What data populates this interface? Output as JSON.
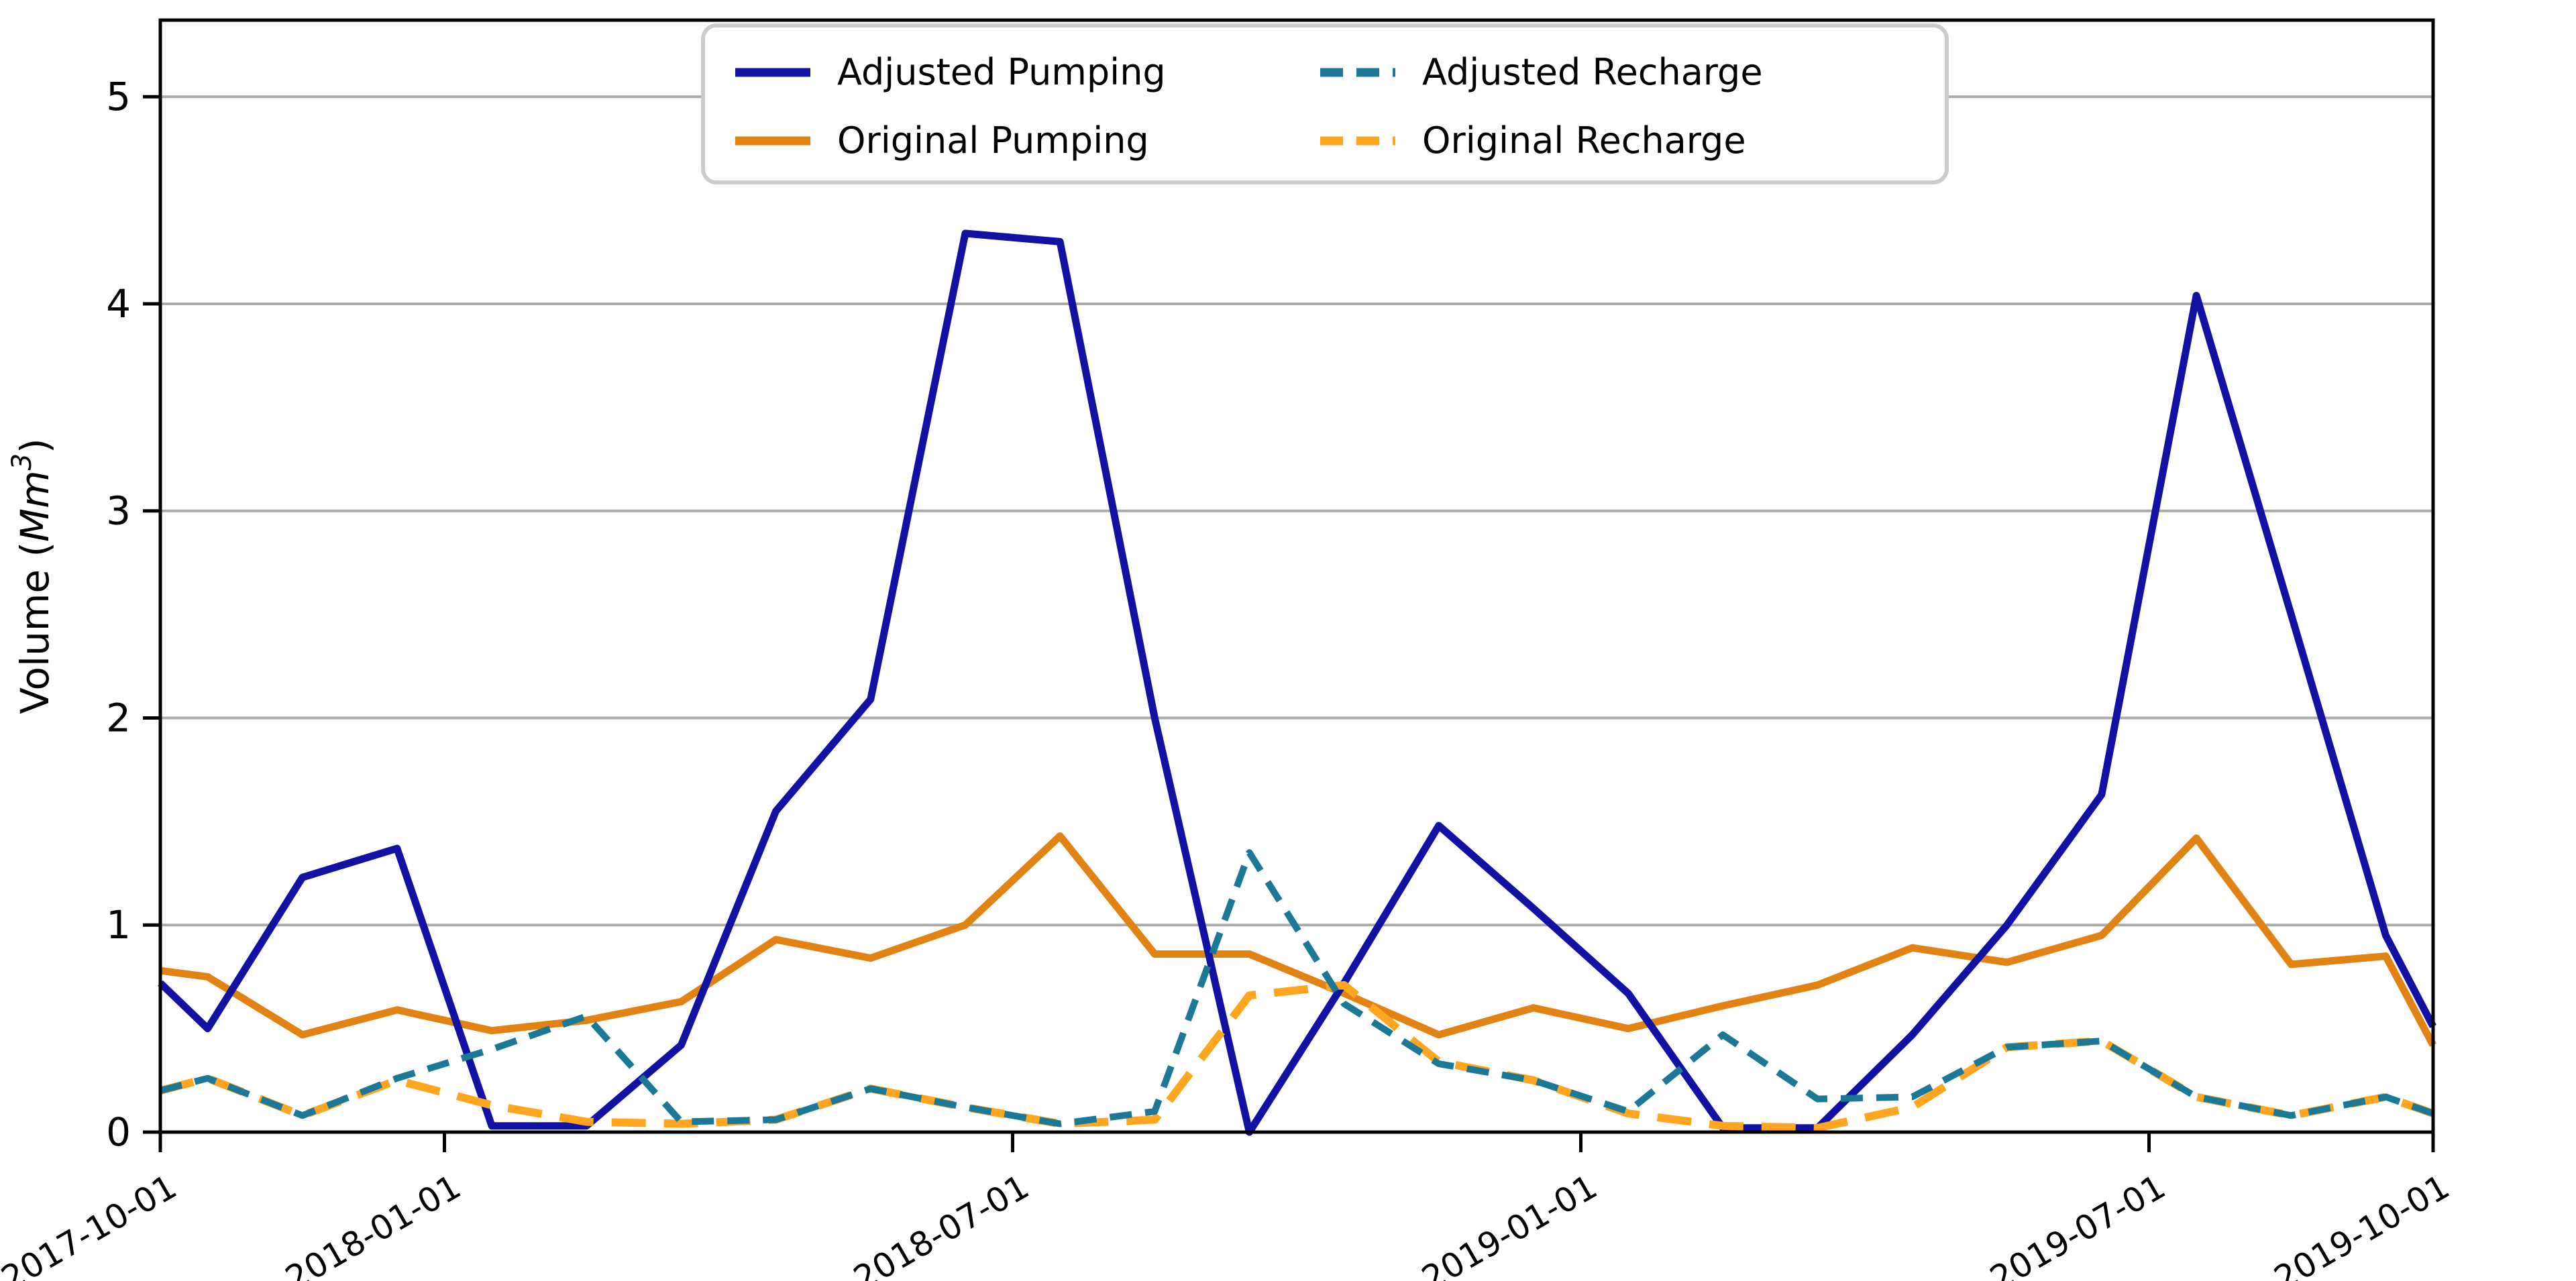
{
  "page": {
    "background": "#FFFFFF"
  },
  "chart_data": {
    "type": "line",
    "title": "",
    "xlabel": "",
    "ylabel": "Volume (Mm³)",
    "ylabel_parts": {
      "prefix": "Volume (",
      "math": "Mm",
      "sup": "3",
      "suffix": ")"
    },
    "ylim": [
      0,
      5.37
    ],
    "yticks": [
      0,
      1,
      2,
      3,
      4,
      5
    ],
    "ytick_labels": [
      "0",
      "1",
      "2",
      "3",
      "4",
      "5"
    ],
    "grid": "horizontal",
    "grid_color": "#ABABAB",
    "spine_color": "#000000",
    "legend": {
      "position": "upper center",
      "border_color": "#CCCCCC",
      "fill": "#FFFFFF",
      "columns": 2,
      "entries": [
        {
          "label": "Adjusted Pumping",
          "color": "#1111A3",
          "style": "solid"
        },
        {
          "label": "Original Pumping",
          "color": "#E28212",
          "style": "solid"
        },
        {
          "label": "Adjusted Recharge",
          "color": "#1B7997",
          "style": "dashed"
        },
        {
          "label": "Original Recharge",
          "color": "#FFA51F",
          "style": "dashed"
        }
      ]
    },
    "x_axis": {
      "unit": "months since 2017-10-01",
      "range_months": [
        0,
        24
      ],
      "xtick_months": [
        0,
        3,
        9,
        15,
        21,
        24
      ],
      "xtick_labels": [
        "2017-10-01",
        "2018-01-01",
        "2018-07-01",
        "2019-01-01",
        "2019-07-01",
        "2019-10-01"
      ],
      "xtick_rotation": -30
    },
    "x_months": [
      0,
      0.5,
      1.5,
      2.5,
      3.5,
      4.5,
      5.5,
      6.5,
      7.5,
      8.5,
      9.5,
      10.5,
      11.5,
      12.5,
      13.5,
      14.5,
      15.5,
      16.5,
      17.5,
      18.5,
      19.5,
      20.5,
      21.5,
      22.5,
      23.5,
      24
    ],
    "x_dates": [
      "2017-10-01",
      "2017-10-16",
      "2017-11-16",
      "2017-12-16",
      "2018-01-16",
      "2018-02-16",
      "2018-03-16",
      "2018-04-16",
      "2018-05-16",
      "2018-06-16",
      "2018-07-16",
      "2018-08-16",
      "2018-09-16",
      "2018-10-16",
      "2018-11-16",
      "2018-12-16",
      "2019-01-16",
      "2019-02-16",
      "2019-03-16",
      "2019-04-16",
      "2019-05-16",
      "2019-06-16",
      "2019-07-16",
      "2019-08-16",
      "2019-09-16",
      "2019-10-01"
    ],
    "series": [
      {
        "id": "original_pumping",
        "name": "Original Pumping",
        "color": "#E28212",
        "style": "solid",
        "width": 11,
        "values": [
          0.78,
          0.75,
          0.47,
          0.59,
          0.49,
          0.54,
          0.63,
          0.93,
          0.84,
          1.0,
          1.43,
          0.86,
          0.86,
          0.67,
          0.47,
          0.6,
          0.5,
          0.61,
          0.71,
          0.89,
          0.82,
          0.95,
          1.42,
          0.81,
          0.85,
          0.42
        ]
      },
      {
        "id": "adjusted_pumping",
        "name": "Adjusted Pumping",
        "color": "#1111A3",
        "style": "solid",
        "width": 11,
        "values": [
          0.72,
          0.5,
          1.23,
          1.37,
          0.03,
          0.03,
          0.42,
          1.55,
          2.09,
          4.34,
          4.3,
          2.0,
          0.0,
          0.72,
          1.48,
          1.08,
          0.67,
          0.02,
          0.02,
          0.47,
          1.0,
          1.63,
          4.04,
          2.5,
          0.95,
          0.51
        ]
      },
      {
        "id": "original_recharge",
        "name": "Original Recharge",
        "color": "#FFA51F",
        "style": "dashed",
        "width": 12,
        "dash": [
          51,
          27
        ],
        "values": [
          0.2,
          0.26,
          0.08,
          0.25,
          0.13,
          0.05,
          0.04,
          0.06,
          0.21,
          0.12,
          0.04,
          0.06,
          0.66,
          0.71,
          0.34,
          0.25,
          0.09,
          0.03,
          0.02,
          0.12,
          0.41,
          0.44,
          0.17,
          0.08,
          0.17,
          0.09
        ]
      },
      {
        "id": "adjusted_recharge",
        "name": "Adjusted Recharge",
        "color": "#1B7997",
        "style": "dashed",
        "width": 10,
        "dash": [
          33,
          20
        ],
        "values": [
          0.2,
          0.26,
          0.08,
          0.26,
          0.4,
          0.56,
          0.05,
          0.06,
          0.21,
          0.12,
          0.04,
          0.1,
          1.35,
          0.62,
          0.33,
          0.25,
          0.1,
          0.47,
          0.16,
          0.17,
          0.41,
          0.44,
          0.17,
          0.08,
          0.17,
          0.09
        ]
      }
    ]
  }
}
